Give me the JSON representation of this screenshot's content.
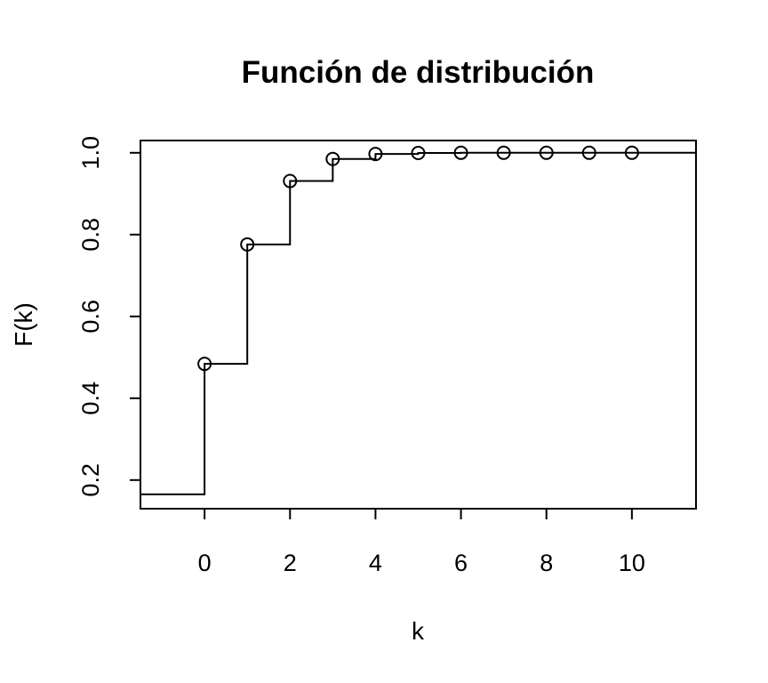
{
  "chart_data": {
    "type": "line",
    "title": "Función de distribución",
    "xlabel": "k",
    "ylabel": "F(k)",
    "xlim": [
      -1.5,
      11.5
    ],
    "ylim": [
      0.13,
      1.03
    ],
    "xticks": [
      0,
      2,
      4,
      6,
      8,
      10
    ],
    "xtick_labels": [
      "0",
      "2",
      "4",
      "6",
      "8",
      "10"
    ],
    "yticks": [
      0.2,
      0.4,
      0.6,
      0.8,
      1.0
    ],
    "ytick_labels": [
      "0.2",
      "0.4",
      "0.6",
      "0.8",
      "1.0"
    ],
    "grid": false,
    "legend": "none",
    "step_start_value": 0.165,
    "series": [
      {
        "x": [
          0,
          1,
          2,
          3,
          4,
          5,
          6,
          7,
          8,
          9,
          10
        ],
        "y": [
          0.484,
          0.776,
          0.931,
          0.985,
          0.997,
          0.9995,
          1.0,
          1.0,
          1.0,
          1.0,
          1.0
        ]
      }
    ],
    "colors": {
      "line": "#000000",
      "frame": "#000000",
      "background": "#ffffff"
    }
  }
}
